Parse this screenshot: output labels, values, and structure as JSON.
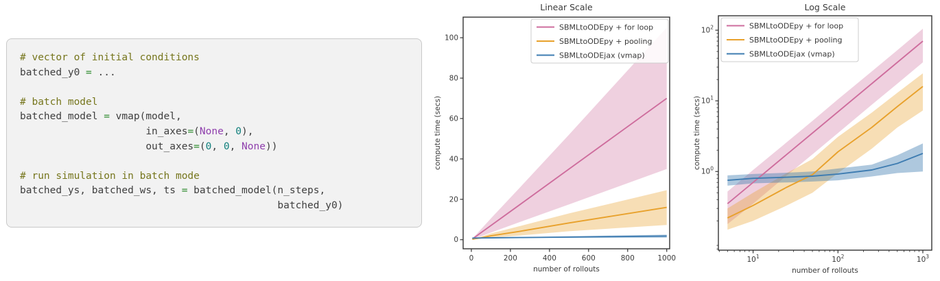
{
  "page": {
    "background": "#ffffff"
  },
  "code_panel": {
    "background": "#f2f2f2",
    "border_color": "#c9c9c9",
    "text_color": "#3f3f3f",
    "syntax_colors": {
      "comment": "#76761d",
      "operator": "#2e8b2e",
      "keyword": "#8f3fad",
      "number": "#107f7c",
      "plain": "#3f3f3f"
    },
    "lines": [
      [
        {
          "t": "# vector of initial conditions",
          "c": "comment"
        }
      ],
      [
        {
          "t": "batched_y0 ",
          "c": "plain"
        },
        {
          "t": "=",
          "c": "operator"
        },
        {
          "t": " ...",
          "c": "plain"
        }
      ],
      [],
      [
        {
          "t": "# batch model",
          "c": "comment"
        }
      ],
      [
        {
          "t": "batched_model ",
          "c": "plain"
        },
        {
          "t": "=",
          "c": "operator"
        },
        {
          "t": " vmap(model,",
          "c": "plain"
        }
      ],
      [
        {
          "t": "                     in_axes",
          "c": "plain"
        },
        {
          "t": "=",
          "c": "operator"
        },
        {
          "t": "(",
          "c": "plain"
        },
        {
          "t": "None",
          "c": "keyword"
        },
        {
          "t": ", ",
          "c": "plain"
        },
        {
          "t": "0",
          "c": "number"
        },
        {
          "t": "),",
          "c": "plain"
        }
      ],
      [
        {
          "t": "                     out_axes",
          "c": "plain"
        },
        {
          "t": "=",
          "c": "operator"
        },
        {
          "t": "(",
          "c": "plain"
        },
        {
          "t": "0",
          "c": "number"
        },
        {
          "t": ", ",
          "c": "plain"
        },
        {
          "t": "0",
          "c": "number"
        },
        {
          "t": ", ",
          "c": "plain"
        },
        {
          "t": "None",
          "c": "keyword"
        },
        {
          "t": "))",
          "c": "plain"
        }
      ],
      [],
      [
        {
          "t": "# run simulation in batch mode",
          "c": "comment"
        }
      ],
      [
        {
          "t": "batched_ys, batched_ws, ts ",
          "c": "plain"
        },
        {
          "t": "=",
          "c": "operator"
        },
        {
          "t": " batched_model(n_steps,",
          "c": "plain"
        }
      ],
      [
        {
          "t": "                                           batched_y0)",
          "c": "plain"
        }
      ]
    ]
  },
  "chart_data": {
    "type": "line",
    "x": [
      5,
      10,
      25,
      50,
      100,
      250,
      500,
      1000
    ],
    "xlabel": "number of rollouts",
    "ylabel": "compute time (secs)",
    "axis_color": "#333333",
    "text_color": "#3a3a3a",
    "series": [
      {
        "name": "SBMLtoODEpy + for loop",
        "color": "#ce6d9d",
        "band_opacity": 0.32,
        "mean": [
          0.35,
          0.7,
          1.75,
          3.5,
          7,
          17.5,
          35,
          70
        ],
        "lo": [
          0.18,
          0.35,
          0.88,
          1.75,
          3.5,
          8.8,
          17.5,
          35
        ],
        "hi": [
          0.52,
          1.05,
          2.6,
          5.2,
          10.5,
          26,
          52,
          105
        ]
      },
      {
        "name": "SBMLtoODEpy + pooling",
        "color": "#e8a12c",
        "band_opacity": 0.35,
        "mean": [
          0.22,
          0.33,
          0.6,
          0.9,
          1.9,
          4.2,
          8.3,
          16
        ],
        "lo": [
          0.15,
          0.2,
          0.33,
          0.5,
          0.95,
          2.1,
          4.2,
          7.3
        ],
        "hi": [
          0.3,
          0.5,
          0.95,
          1.5,
          3.1,
          6.8,
          13,
          24.5
        ]
      },
      {
        "name": "SBMLtoODEjax (vmap)",
        "color": "#3e7cb1",
        "band_opacity": 0.42,
        "mean": [
          0.75,
          0.8,
          0.83,
          0.86,
          0.92,
          1.05,
          1.3,
          1.8
        ],
        "lo": [
          0.63,
          0.68,
          0.7,
          0.72,
          0.75,
          0.85,
          0.95,
          1.0
        ],
        "hi": [
          0.88,
          0.92,
          0.96,
          1.0,
          1.1,
          1.25,
          1.7,
          2.5
        ]
      }
    ],
    "charts": [
      {
        "id": "linear",
        "title": "Linear Scale",
        "xscale": "linear",
        "yscale": "linear",
        "xlim": [
          -42,
          1015
        ],
        "ylim": [
          -4.5,
          110.2
        ],
        "xticks": [
          0,
          200,
          400,
          600,
          800,
          1000
        ],
        "yticks": [
          0,
          20,
          40,
          60,
          80,
          100
        ],
        "legend": "top-right"
      },
      {
        "id": "log",
        "title": "Log Scale",
        "xscale": "log",
        "yscale": "log",
        "xlim": [
          3.9,
          1274
        ],
        "ylim": [
          0.077,
          160
        ],
        "xticks": [
          10,
          100,
          1000
        ],
        "yticks": [
          1,
          10,
          100
        ],
        "legend": "top-left"
      }
    ]
  }
}
